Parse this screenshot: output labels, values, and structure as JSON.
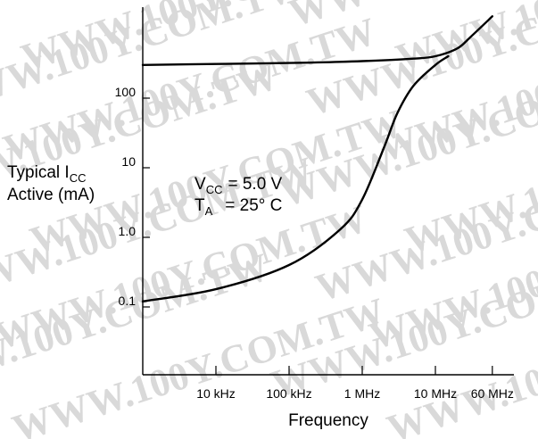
{
  "chart_data": {
    "type": "line",
    "title": "",
    "ylabel": {
      "line1_main": "Typical I",
      "line1_sub": "CC",
      "line2": "Active (mA)"
    },
    "xlabel": "Frequency",
    "y_scale": "log",
    "x_scale": "log",
    "ylim": [
      0.1,
      1500
    ],
    "xlim": [
      "1 kHz",
      "60 MHz"
    ],
    "y_ticks": [
      {
        "label": "0.1",
        "value": 0.1
      },
      {
        "label": "1.0",
        "value": 1.0
      },
      {
        "label": "10",
        "value": 10
      },
      {
        "label": "100",
        "value": 100
      }
    ],
    "x_ticks": [
      {
        "label": "10 kHz",
        "value": 10000
      },
      {
        "label": "100 kHz",
        "value": 100000
      },
      {
        "label": "1 MHz",
        "value": 1000000
      },
      {
        "label": "10 MHz",
        "value": 10000000
      },
      {
        "label": "60 MHz",
        "value": 60000000
      }
    ],
    "annotations": {
      "vcc_main": "V",
      "vcc_sub": "CC",
      "vcc_value": "= 5.0 V",
      "ta_main": "T",
      "ta_sub": "A",
      "ta_value": "= 25° C"
    },
    "series": [
      {
        "x": [
          1000,
          10000,
          100000,
          1000000,
          5000000,
          10000000,
          20000000,
          30000000,
          60000000
        ],
        "y": [
          300,
          310,
          320,
          340,
          370,
          400,
          520,
          750,
          1500
        ]
      },
      {
        "x": [
          1000,
          10000,
          100000,
          500000,
          1000000,
          2000000,
          3000000,
          5000000,
          10000000,
          15000000
        ],
        "y": [
          0.12,
          0.18,
          0.4,
          1.3,
          3.5,
          20,
          60,
          150,
          300,
          400
        ]
      }
    ]
  },
  "watermark": "WWW.100Y.COM.TW"
}
